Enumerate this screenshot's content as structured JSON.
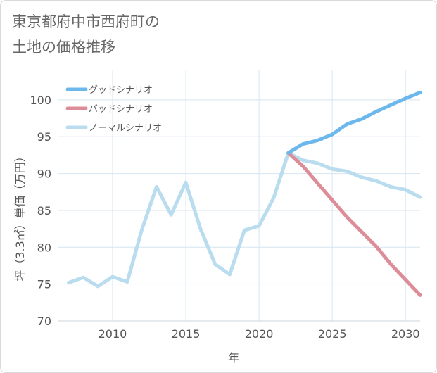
{
  "title_lines": [
    "東京都府中市西府町の",
    "土地の価格推移"
  ],
  "chart_data": {
    "type": "line",
    "title": "東京都府中市西府町の土地の価格推移",
    "xlabel": "年",
    "ylabel": "坪（3.3㎡）単価（万円）",
    "xlim": [
      2006.3,
      2031.0
    ],
    "ylim": [
      70,
      104
    ],
    "xticks": [
      2010,
      2015,
      2020,
      2025,
      2030
    ],
    "yticks": [
      70,
      75,
      80,
      85,
      90,
      95,
      100
    ],
    "grid": true,
    "legend_position": "top-left",
    "series": [
      {
        "name": "グッドシナリオ",
        "color": "#6cb8ed",
        "x": [
          2022,
          2023,
          2024,
          2025,
          2026,
          2027,
          2028,
          2029,
          2030,
          2031
        ],
        "values": [
          92.8,
          94.0,
          94.5,
          95.3,
          96.7,
          97.4,
          98.4,
          99.3,
          100.2,
          101.0
        ]
      },
      {
        "name": "バッドシナリオ",
        "color": "#dd8d97",
        "x": [
          2022,
          2023,
          2024,
          2025,
          2026,
          2027,
          2028,
          2029,
          2030,
          2031
        ],
        "values": [
          92.8,
          91.0,
          88.7,
          86.4,
          84.1,
          82.1,
          80.1,
          77.7,
          75.6,
          73.5
        ]
      },
      {
        "name": "ノーマルシナリオ",
        "color": "#b9dcef",
        "x": [
          2007,
          2008,
          2009,
          2010,
          2011,
          2012,
          2013,
          2014,
          2015,
          2016,
          2017,
          2018,
          2019,
          2020,
          2021,
          2022,
          2023,
          2024,
          2025,
          2026,
          2027,
          2028,
          2029,
          2030,
          2031
        ],
        "values": [
          75.2,
          75.9,
          74.7,
          76.0,
          75.3,
          82.4,
          88.2,
          84.4,
          88.8,
          82.5,
          77.7,
          76.3,
          82.3,
          82.9,
          86.7,
          92.8,
          91.8,
          91.4,
          90.6,
          90.3,
          89.5,
          89.0,
          88.2,
          87.8,
          86.8
        ]
      }
    ]
  }
}
